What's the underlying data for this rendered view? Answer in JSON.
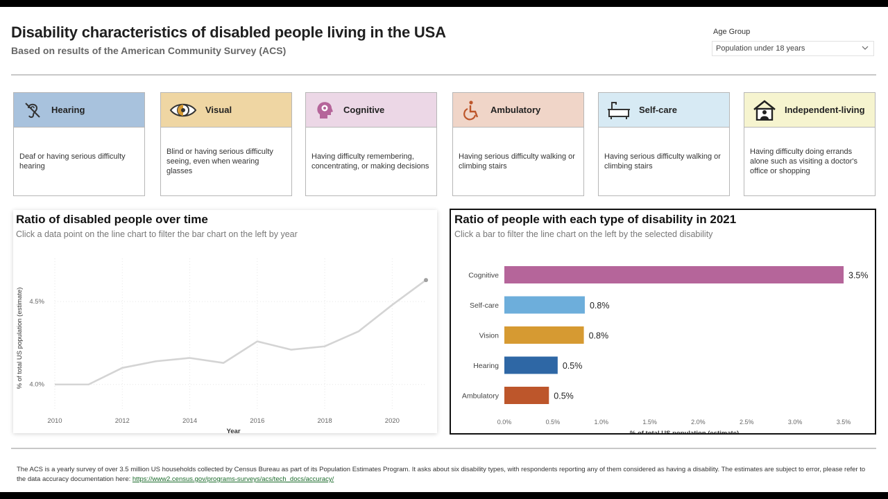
{
  "header": {
    "title": "Disability characteristics of disabled people living in the USA",
    "subtitle": "Based on results of the American Community Survey (ACS)"
  },
  "filter": {
    "label": "Age Group",
    "value": "Population under 18 years"
  },
  "cards": [
    {
      "label": "Hearing",
      "desc": "Deaf or having serious difficulty hearing",
      "icon": "hearing-impaired-icon",
      "color": "#a8c2dd"
    },
    {
      "label": "Visual",
      "desc": "Blind or having serious difficulty seeing, even when wearing glasses",
      "icon": "eye-icon",
      "color": "#efd6a3"
    },
    {
      "label": "Cognitive",
      "desc": "Having difficulty remembering, concentrating, or making decisions",
      "icon": "head-gear-icon",
      "color": "#ecd7e6"
    },
    {
      "label": "Ambulatory",
      "desc": "Having serious difficulty walking or climbing stairs",
      "icon": "wheelchair-icon",
      "color": "#f0d5c8"
    },
    {
      "label": "Self-care",
      "desc": "Having serious difficulty walking or climbing stairs",
      "icon": "bathtub-icon",
      "color": "#d7eaf4"
    },
    {
      "label": "Independent-living",
      "desc": "Having difficulty doing errands alone such as visiting a doctor's office or shopping",
      "icon": "house-person-icon",
      "color": "#f6f4cf"
    }
  ],
  "line_panel": {
    "title": "Ratio of disabled people over time",
    "subtitle": "Click a data point on the line chart to filter the bar chart on the left by year"
  },
  "bar_panel": {
    "title": "Ratio of people with each type of disability in 2021",
    "subtitle": "Click a bar to filter the line chart on the left by the selected disability"
  },
  "chart_data": [
    {
      "type": "line",
      "xlabel": "Year",
      "ylabel": "% of total US population (estimate)",
      "x": [
        2010,
        2011,
        2012,
        2013,
        2014,
        2015,
        2016,
        2017,
        2018,
        2019,
        2020,
        2021
      ],
      "values": [
        4.0,
        4.0,
        4.1,
        4.14,
        4.16,
        4.13,
        4.26,
        4.21,
        4.23,
        4.32,
        4.48,
        4.63
      ],
      "xticks": [
        "2010",
        "2012",
        "2014",
        "2016",
        "2018",
        "2020"
      ],
      "yticks": [
        {
          "v": 4.0,
          "label": "4.0%"
        },
        {
          "v": 4.5,
          "label": "4.5%"
        }
      ],
      "ylim": [
        3.84,
        4.76
      ],
      "xlim": [
        2010,
        2021
      ],
      "line_color": "#d4d4d4",
      "grid": true
    },
    {
      "type": "bar",
      "orientation": "horizontal",
      "xlabel": "% of total US population (estimate)",
      "categories": [
        "Cognitive",
        "Self-care",
        "Vision",
        "Hearing",
        "Ambulatory"
      ],
      "values": [
        3.5,
        0.83,
        0.82,
        0.55,
        0.46
      ],
      "data_labels": [
        "3.5%",
        "0.8%",
        "0.8%",
        "0.5%",
        "0.5%"
      ],
      "colors": [
        "#b5659a",
        "#6daedb",
        "#d69a32",
        "#2e67a5",
        "#bd562b"
      ],
      "xticks": [
        "0.0%",
        "0.5%",
        "1.0%",
        "1.5%",
        "2.0%",
        "2.5%",
        "3.0%",
        "3.5%"
      ],
      "xlim": [
        0,
        3.5
      ]
    }
  ],
  "footer": {
    "text": "The ACS is a yearly survey of over 3.5 million US households collected by Census Bureau as part of its Population Estimates Program. It asks about six disability types, with respondents reporting any of them considered as having a disability. The estimates are subject to error, please refer to the data accuracy documentation here: ",
    "link": "https://www2.census.gov/programs-surveys/acs/tech_docs/accuracy/"
  }
}
